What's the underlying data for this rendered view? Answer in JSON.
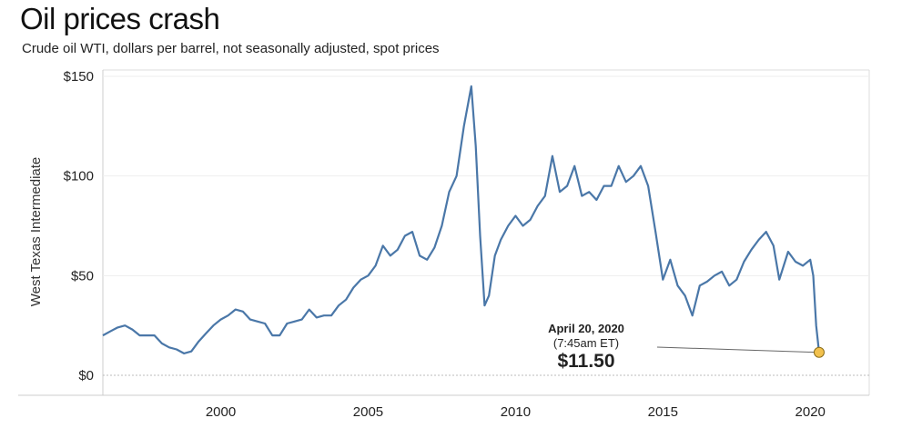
{
  "title": "Oil prices crash",
  "subtitle": "Crude oil WTI, dollars per barrel, not seasonally adjusted, spot prices",
  "chart_data": {
    "type": "line",
    "title": "Oil prices crash",
    "subtitle": "Crude oil WTI, dollars per barrel, not seasonally adjusted, spot prices",
    "xlabel": "",
    "ylabel": "West Texas Intermediate",
    "xlim": [
      1996,
      2022
    ],
    "ylim": [
      -5,
      150
    ],
    "x_ticks": [
      2000,
      2005,
      2010,
      2015,
      2020
    ],
    "x_tick_labels": [
      "2000",
      "2005",
      "2010",
      "2015",
      "2020"
    ],
    "y_ticks": [
      0,
      50,
      100,
      150
    ],
    "y_tick_labels": [
      "$0",
      "$50",
      "$100",
      "$150"
    ],
    "grid": true,
    "line_color": "#4a77a8",
    "series": [
      {
        "x": [
          1996.0,
          1996.25,
          1996.5,
          1996.75,
          1997.0,
          1997.25,
          1997.5,
          1997.75,
          1998.0,
          1998.25,
          1998.5,
          1998.75,
          1999.0,
          1999.25,
          1999.5,
          1999.75,
          2000.0,
          2000.25,
          2000.5,
          2000.75,
          2001.0,
          2001.25,
          2001.5,
          2001.75,
          2002.0,
          2002.25,
          2002.5,
          2002.75,
          2003.0,
          2003.25,
          2003.5,
          2003.75,
          2004.0,
          2004.25,
          2004.5,
          2004.75,
          2005.0,
          2005.25,
          2005.5,
          2005.75,
          2006.0,
          2006.25,
          2006.5,
          2006.75,
          2007.0,
          2007.25,
          2007.5,
          2007.75,
          2008.0,
          2008.25,
          2008.5,
          2008.65,
          2008.8,
          2008.95,
          2009.1,
          2009.3,
          2009.5,
          2009.75,
          2010.0,
          2010.25,
          2010.5,
          2010.75,
          2011.0,
          2011.25,
          2011.5,
          2011.75,
          2012.0,
          2012.25,
          2012.5,
          2012.75,
          2013.0,
          2013.25,
          2013.5,
          2013.75,
          2014.0,
          2014.25,
          2014.5,
          2014.75,
          2015.0,
          2015.25,
          2015.5,
          2015.75,
          2016.0,
          2016.25,
          2016.5,
          2016.75,
          2017.0,
          2017.25,
          2017.5,
          2017.75,
          2018.0,
          2018.25,
          2018.5,
          2018.75,
          2018.95,
          2019.25,
          2019.5,
          2019.75,
          2020.0,
          2020.1,
          2020.2,
          2020.3
        ],
        "y": [
          20,
          22,
          24,
          25,
          23,
          20,
          20,
          20,
          16,
          14,
          13,
          11,
          12,
          17,
          21,
          25,
          28,
          30,
          33,
          32,
          28,
          27,
          26,
          20,
          20,
          26,
          27,
          28,
          33,
          29,
          30,
          30,
          35,
          38,
          44,
          48,
          50,
          55,
          65,
          60,
          63,
          70,
          72,
          60,
          58,
          64,
          75,
          92,
          100,
          125,
          145,
          115,
          70,
          35,
          40,
          60,
          68,
          75,
          80,
          75,
          78,
          85,
          90,
          110,
          92,
          95,
          105,
          90,
          92,
          88,
          95,
          95,
          105,
          97,
          100,
          105,
          95,
          72,
          48,
          58,
          45,
          40,
          30,
          45,
          47,
          50,
          52,
          45,
          48,
          57,
          63,
          68,
          72,
          65,
          48,
          62,
          57,
          55,
          58,
          50,
          25,
          11.5
        ]
      }
    ],
    "annotation": {
      "date": "April 20, 2020",
      "time": "(7:45am ET)",
      "value_label": "$11.50",
      "x": 2020.3,
      "y": 11.5,
      "marker_color": "#f2c14e"
    }
  }
}
